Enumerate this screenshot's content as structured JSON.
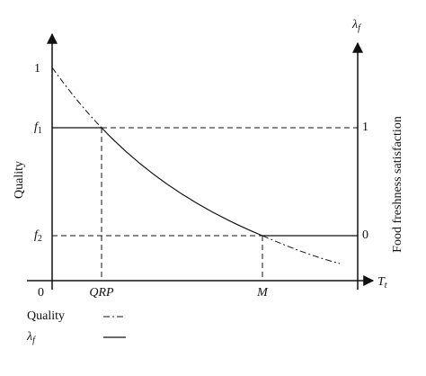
{
  "left_axis": {
    "title": "Quality",
    "top_label": "1",
    "f1": {
      "base": "f",
      "sub": "1"
    },
    "f2": {
      "base": "f",
      "sub": "2"
    },
    "origin_label": "0"
  },
  "right_axis": {
    "title": "Food freshness satisfaction",
    "symbol": {
      "base": "λ",
      "sub": "f"
    },
    "upper_label": "1",
    "lower_label": "0"
  },
  "x_axis": {
    "symbol": {
      "base": "T",
      "sub": "t"
    },
    "labels": [
      "QRP",
      "M"
    ]
  },
  "legend": [
    {
      "label": "Quality"
    },
    {
      "label": {
        "base": "λ",
        "sub": "f"
      }
    }
  ]
}
